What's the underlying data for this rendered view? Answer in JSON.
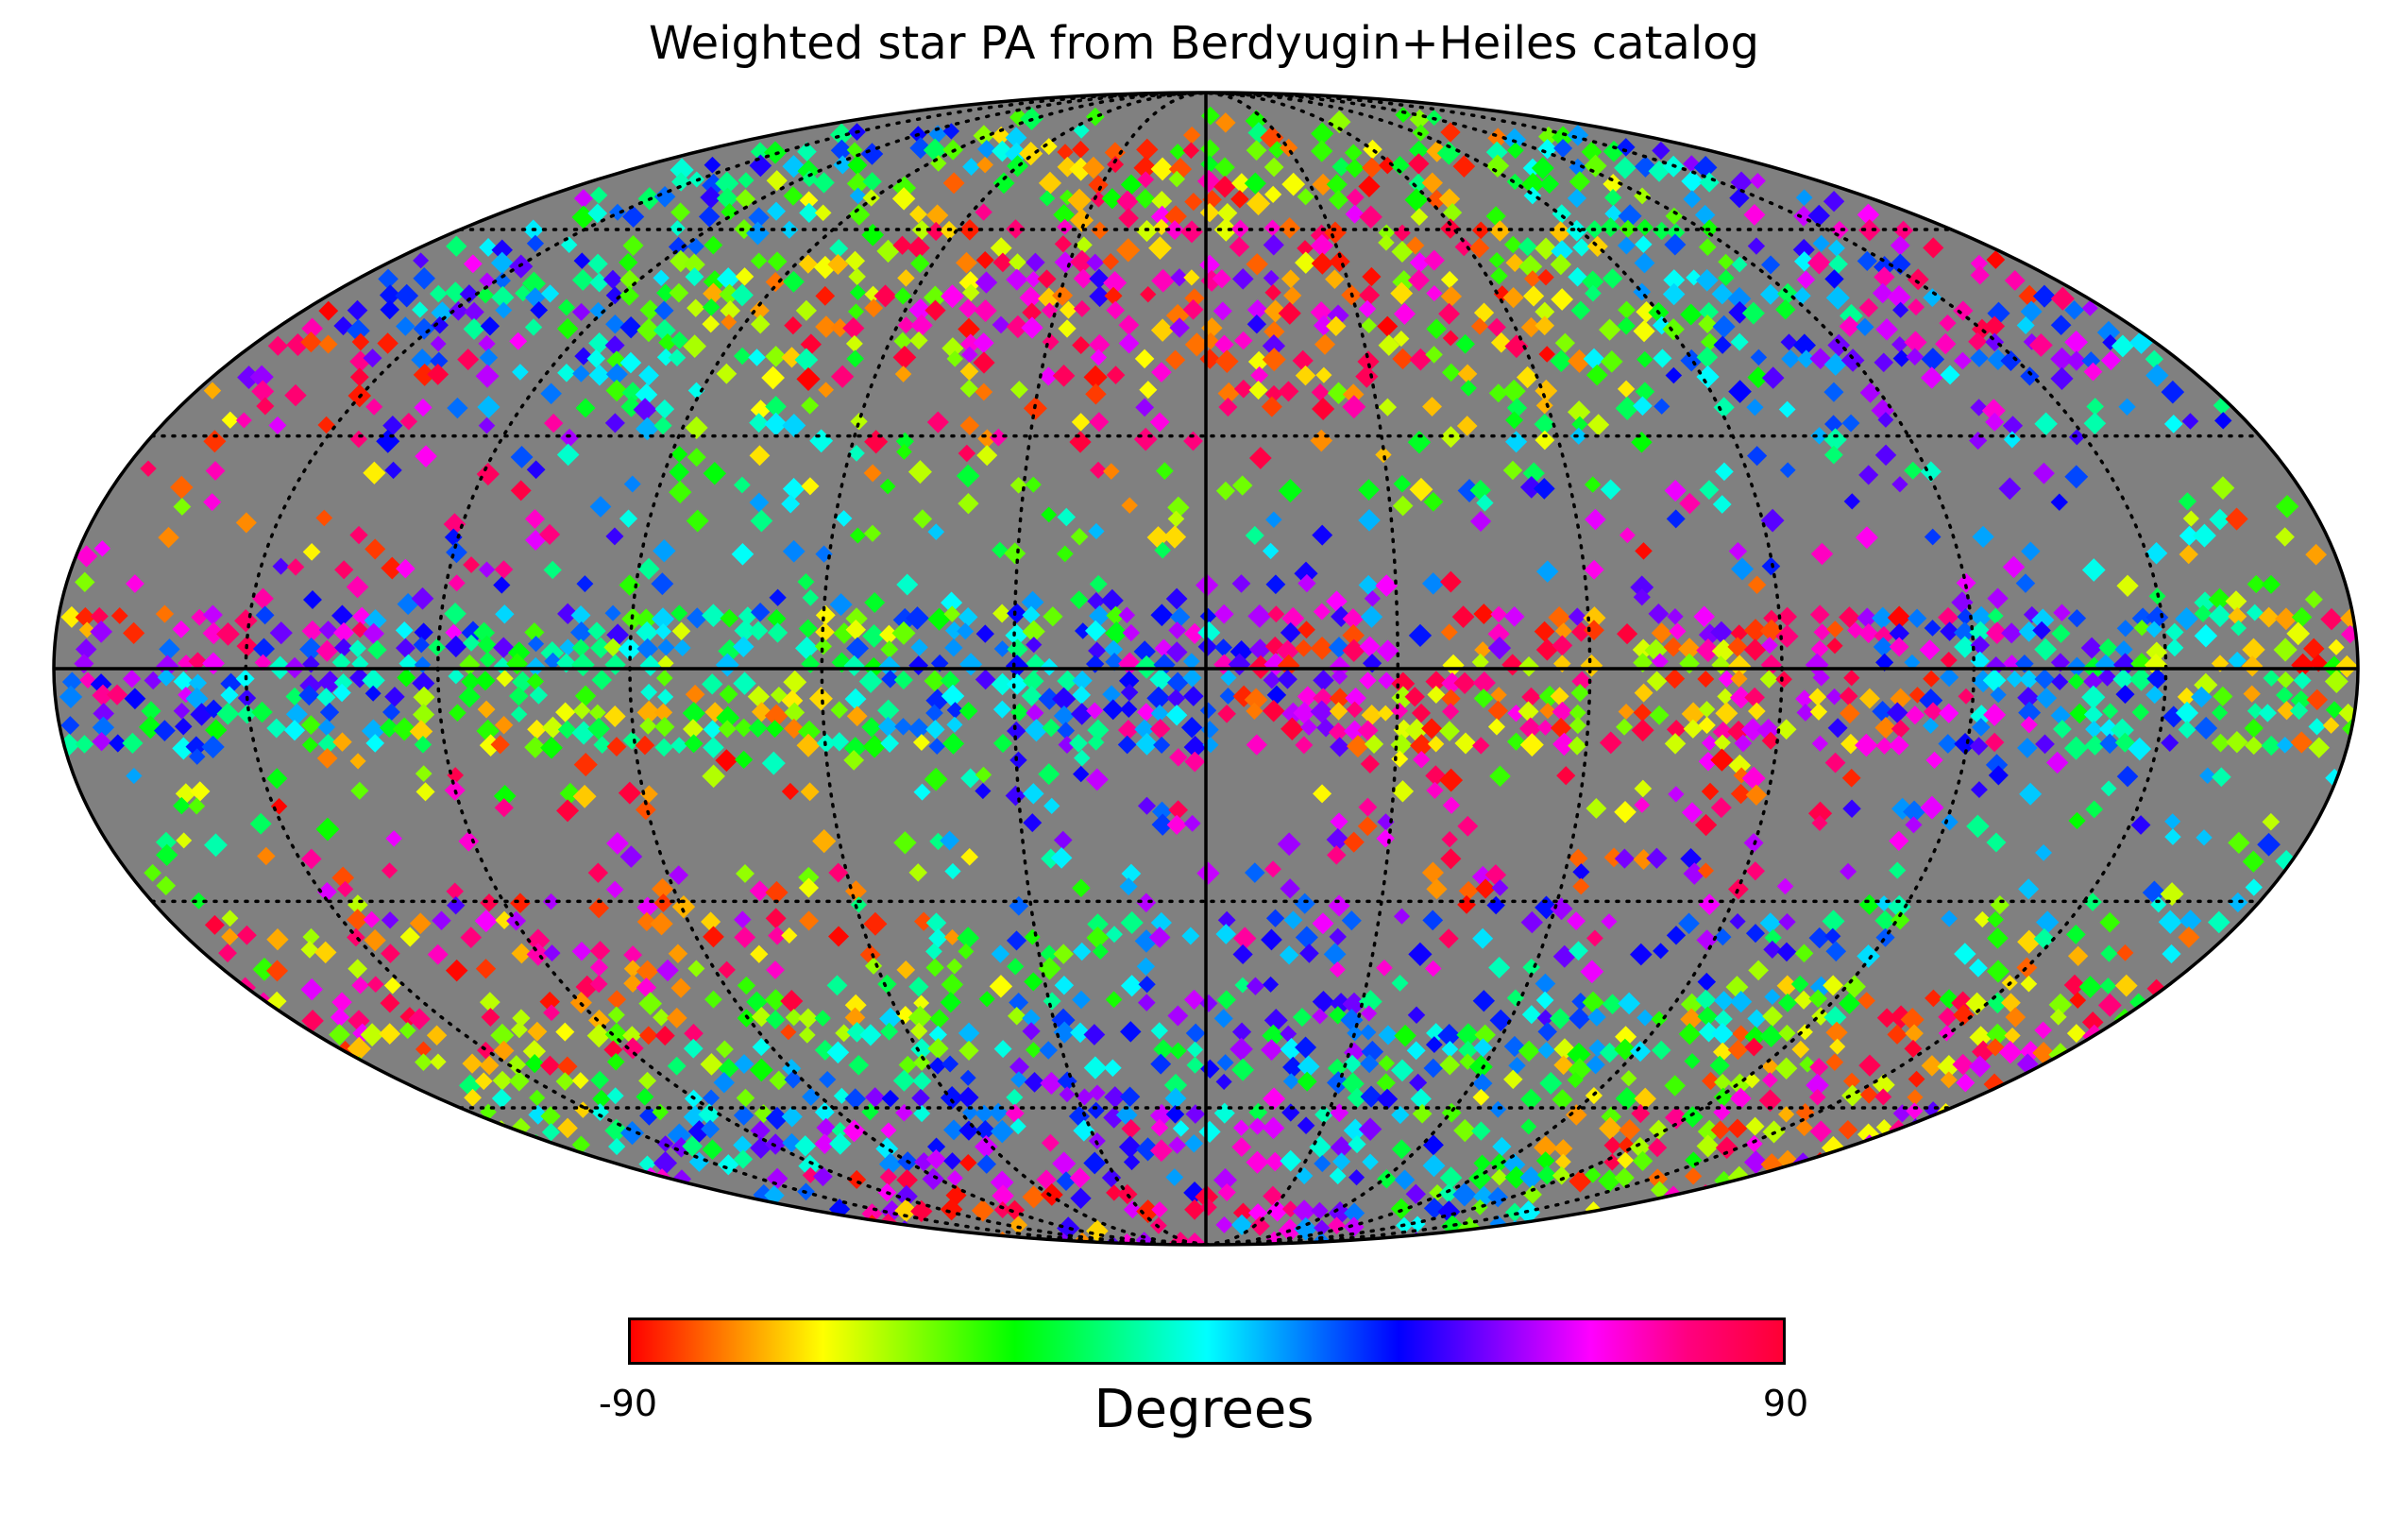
{
  "title": "Weighted star PA from Berdyugin+Heiles catalog",
  "map": {
    "projection": "mollweide",
    "graticule": "dotted",
    "center_meridian": "solid",
    "equator": "solid",
    "background_color": "#808080"
  },
  "colorbar": {
    "min_label": "-90",
    "max_label": "90",
    "label": "Degrees",
    "range": [
      -90,
      90
    ],
    "stops": [
      "#ff0000",
      "#ff8000",
      "#ffff00",
      "#80ff00",
      "#00ff00",
      "#00ff80",
      "#00ffff",
      "#0080ff",
      "#0000ff",
      "#8000ff",
      "#ff00ff",
      "#ff0080",
      "#ff0033"
    ]
  }
}
